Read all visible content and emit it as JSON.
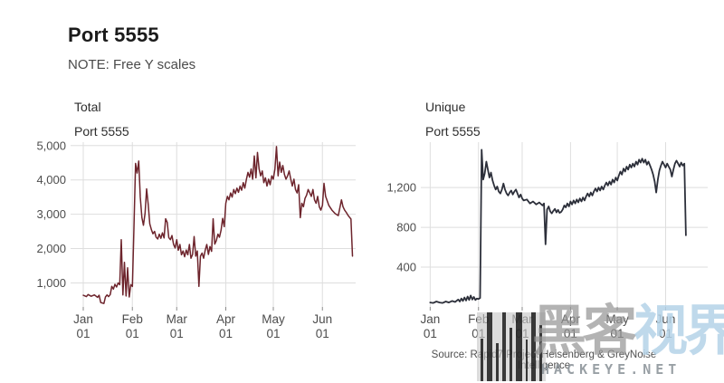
{
  "page": {
    "title": "Port 5555",
    "note": "NOTE: Free Y scales",
    "source": "Source: Rapid7 Project Heisenberg & GreyNoise Intelligence"
  },
  "watermark": {
    "cn_gray": "黑客",
    "cn_blue": "视界",
    "latin": "HACKEYE.NET",
    "gray_color": "#969696",
    "blue_color": "#b5d3e8",
    "latin_color": "#8f969c"
  },
  "chart_data": [
    {
      "type": "line",
      "facet": "Total",
      "subtitle": "Port 5555",
      "xlabel": "",
      "ylabel": "",
      "legend": "none",
      "grid": true,
      "line_color": "#6d242c",
      "line_width": 1.5,
      "grid_color": "#dedede",
      "axis_text_color": "#4d4d4d",
      "tick_color": "#8a8a8a",
      "x_unit": "days since Jan 01",
      "xlim": [
        -8,
        172
      ],
      "ylim": [
        300,
        5100
      ],
      "x_ticks": [
        {
          "day": 0,
          "month": "Jan",
          "dom": "01"
        },
        {
          "day": 31,
          "month": "Feb",
          "dom": "01"
        },
        {
          "day": 59,
          "month": "Mar",
          "dom": "01"
        },
        {
          "day": 90,
          "month": "Apr",
          "dom": "01"
        },
        {
          "day": 120,
          "month": "May",
          "dom": "01"
        },
        {
          "day": 151,
          "month": "Jun",
          "dom": "01"
        }
      ],
      "y_ticks": [
        {
          "v": 1000,
          "label": "1,000"
        },
        {
          "v": 2000,
          "label": "2,000"
        },
        {
          "v": 3000,
          "label": "3,000"
        },
        {
          "v": 4000,
          "label": "4,000"
        },
        {
          "v": 5000,
          "label": "5,000"
        }
      ],
      "x": [
        0,
        2,
        3,
        5,
        7,
        9,
        10,
        11,
        13,
        14,
        15,
        16,
        17,
        18,
        19,
        20,
        21,
        22,
        23,
        24,
        25,
        26,
        27,
        28,
        29,
        30,
        31,
        32,
        33,
        34,
        35,
        36,
        37,
        38,
        39,
        40,
        41,
        42,
        43,
        44,
        45,
        46,
        47,
        48,
        49,
        50,
        51,
        52,
        53,
        54,
        55,
        56,
        57,
        58,
        59,
        60,
        61,
        62,
        63,
        64,
        65,
        66,
        67,
        68,
        69,
        70,
        71,
        72,
        73,
        74,
        75,
        76,
        77,
        78,
        79,
        80,
        81,
        82,
        83,
        84,
        85,
        86,
        87,
        88,
        89,
        90,
        91,
        92,
        93,
        94,
        95,
        96,
        97,
        98,
        99,
        100,
        101,
        102,
        103,
        104,
        105,
        106,
        107,
        108,
        109,
        110,
        111,
        112,
        113,
        114,
        115,
        116,
        117,
        118,
        119,
        120,
        121,
        122,
        123,
        124,
        125,
        126,
        127,
        128,
        129,
        130,
        131,
        132,
        133,
        134,
        135,
        136,
        137,
        138,
        139,
        140,
        141,
        142,
        143,
        144,
        145,
        146,
        147,
        148,
        149,
        150,
        151,
        152,
        153,
        155,
        157,
        159,
        161,
        163,
        164,
        165,
        166,
        167,
        168,
        169,
        170
      ],
      "y": [
        640,
        600,
        660,
        610,
        650,
        580,
        640,
        430,
        400,
        590,
        650,
        600,
        660,
        900,
        820,
        960,
        880,
        1000,
        950,
        2260,
        650,
        1600,
        620,
        1440,
        590,
        950,
        900,
        2600,
        4480,
        4200,
        4550,
        3500,
        2900,
        2680,
        3030,
        3740,
        3280,
        2720,
        2550,
        2430,
        2500,
        2330,
        2280,
        2420,
        2300,
        2460,
        2310,
        2870,
        2760,
        2320,
        2260,
        2380,
        2120,
        2020,
        2260,
        1950,
        2120,
        1820,
        1930,
        1760,
        1960,
        1820,
        2120,
        1720,
        1830,
        2350,
        1780,
        1930,
        900,
        1780,
        1870,
        1720,
        1960,
        2120,
        1830,
        2060,
        1920,
        2870,
        2130,
        2230,
        2420,
        2330,
        2540,
        2880,
        2640,
        3320,
        3520,
        3420,
        3620,
        3500,
        3720,
        3600,
        3760,
        3640,
        3820,
        3700,
        3920,
        3760,
        4020,
        4220,
        4080,
        4320,
        4020,
        4700,
        4060,
        4800,
        4320,
        4120,
        4260,
        3920,
        4060,
        3820,
        4020,
        3860,
        4120,
        4020,
        4320,
        4970,
        4120,
        4520,
        4220,
        4420,
        4160,
        4020,
        4120,
        4260,
        4020,
        3820,
        4020,
        3720,
        3620,
        3860,
        2900,
        3320,
        3220,
        3460,
        3560,
        3720,
        3620,
        3520,
        3720,
        3420,
        3320,
        3520,
        3220,
        3120,
        3260,
        3900,
        3520,
        3260,
        3120,
        3020,
        2960,
        3420,
        3220,
        3120,
        3060,
        2980,
        2920,
        2860,
        1780
      ]
    },
    {
      "type": "line",
      "facet": "Unique",
      "subtitle": "Port 5555",
      "xlabel": "",
      "ylabel": "",
      "legend": "none",
      "grid": true,
      "line_color": "#2c2f3a",
      "line_width": 1.8,
      "grid_color": "#dedede",
      "axis_text_color": "#4d4d4d",
      "tick_color": "#8a8a8a",
      "x_unit": "days since Jan 01",
      "xlim": [
        -6,
        178
      ],
      "ylim": [
        0,
        1656
      ],
      "x_ticks": [
        {
          "day": 0,
          "month": "Jan",
          "dom": "01"
        },
        {
          "day": 31,
          "month": "Feb",
          "dom": "01"
        },
        {
          "day": 59,
          "month": "Mar",
          "dom": "01"
        },
        {
          "day": 90,
          "month": "Apr",
          "dom": "01"
        },
        {
          "day": 120,
          "month": "May",
          "dom": "01"
        },
        {
          "day": 151,
          "month": "Jun",
          "dom": "01"
        }
      ],
      "y_ticks": [
        {
          "v": 400,
          "label": "400"
        },
        {
          "v": 800,
          "label": "800"
        },
        {
          "v": 1200,
          "label": "1,200"
        }
      ],
      "x": [
        0,
        2,
        4,
        6,
        8,
        10,
        12,
        14,
        16,
        18,
        19,
        20,
        21,
        22,
        23,
        24,
        25,
        26,
        27,
        28,
        29,
        30,
        31,
        32,
        33,
        34,
        35,
        36,
        37,
        38,
        39,
        40,
        41,
        42,
        43,
        44,
        45,
        46,
        47,
        48,
        49,
        50,
        51,
        52,
        53,
        54,
        55,
        56,
        57,
        58,
        59,
        60,
        62,
        64,
        66,
        68,
        70,
        72,
        73,
        74,
        75,
        76,
        77,
        78,
        79,
        80,
        81,
        82,
        83,
        84,
        85,
        86,
        87,
        88,
        89,
        90,
        91,
        92,
        93,
        94,
        95,
        96,
        97,
        98,
        99,
        100,
        101,
        102,
        103,
        104,
        105,
        106,
        107,
        108,
        109,
        110,
        111,
        112,
        113,
        114,
        115,
        116,
        117,
        118,
        119,
        120,
        121,
        122,
        123,
        124,
        125,
        126,
        127,
        128,
        129,
        130,
        131,
        132,
        133,
        134,
        135,
        136,
        137,
        138,
        139,
        140,
        141,
        142,
        143,
        144,
        145,
        146,
        147,
        148,
        149,
        150,
        151,
        152,
        153,
        154,
        155,
        156,
        157,
        158,
        159,
        160,
        161,
        162,
        163,
        164
      ],
      "y": [
        45,
        40,
        55,
        45,
        40,
        55,
        45,
        60,
        50,
        75,
        55,
        85,
        60,
        95,
        65,
        105,
        70,
        115,
        75,
        100,
        70,
        85,
        80,
        90,
        1580,
        1280,
        1340,
        1460,
        1380,
        1300,
        1350,
        1270,
        1220,
        1180,
        1210,
        1160,
        1140,
        1180,
        1240,
        1180,
        1140,
        1120,
        1150,
        1170,
        1130,
        1160,
        1180,
        1140,
        1100,
        1130,
        1090,
        1070,
        1080,
        1040,
        1060,
        1030,
        1050,
        1020,
        1040,
        630,
        980,
        1010,
        960,
        940,
        965,
        985,
        950,
        975,
        945,
        955,
        980,
        1020,
        1000,
        1040,
        1010,
        1060,
        1030,
        1070,
        1040,
        1080,
        1050,
        1090,
        1060,
        1100,
        1070,
        1110,
        1140,
        1110,
        1150,
        1120,
        1160,
        1190,
        1160,
        1200,
        1170,
        1210,
        1180,
        1220,
        1250,
        1220,
        1260,
        1230,
        1280,
        1250,
        1300,
        1270,
        1320,
        1360,
        1330,
        1390,
        1360,
        1410,
        1380,
        1430,
        1400,
        1440,
        1410,
        1460,
        1430,
        1480,
        1450,
        1490,
        1450,
        1480,
        1430,
        1460,
        1420,
        1380,
        1330,
        1260,
        1150,
        1280,
        1370,
        1420,
        1460,
        1430,
        1400,
        1440,
        1410,
        1380,
        1310,
        1380,
        1440,
        1470,
        1440,
        1410,
        1450,
        1420,
        1440,
        720
      ]
    }
  ]
}
